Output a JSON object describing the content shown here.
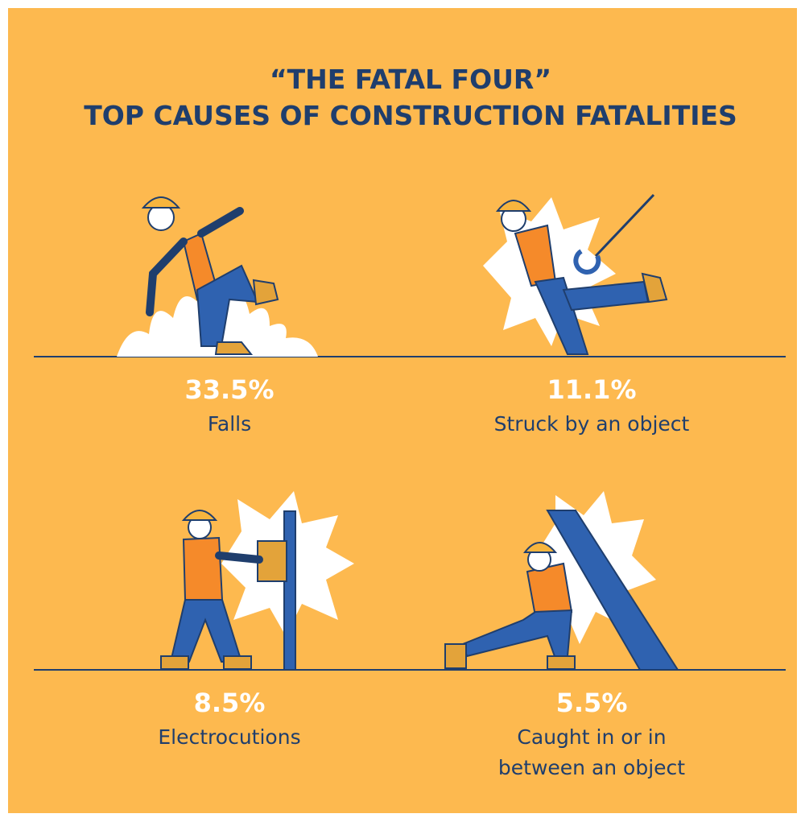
{
  "header": {
    "title_lines": [
      "“THE FATAL FOUR”",
      "TOP CAUSES OF CONSTRUCTION FATALITIES"
    ]
  },
  "items": [
    {
      "value": "33.5%",
      "label_lines": [
        "Falls"
      ]
    },
    {
      "value": "11.1%",
      "label_lines": [
        "Struck by an object"
      ]
    },
    {
      "value": "8.5%",
      "label_lines": [
        "Electrocutions"
      ]
    },
    {
      "value": "5.5%",
      "label_lines": [
        "Caught in or in",
        "between an object"
      ]
    }
  ]
}
